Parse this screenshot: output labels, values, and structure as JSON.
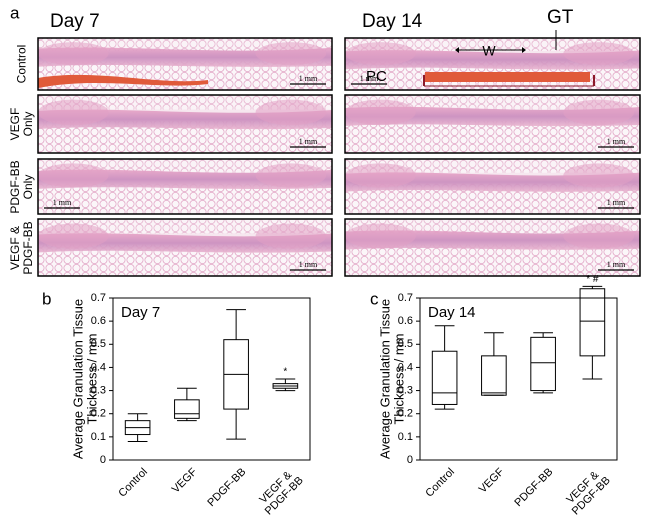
{
  "panel_a": {
    "label": "a",
    "columns": [
      "Day 7",
      "Day 14"
    ],
    "rows": [
      "Control",
      "VEGF\nOnly",
      "PDGF-BB\nOnly",
      "VEGF &\nPDGF-BB"
    ],
    "annotations": {
      "gt": "GT",
      "w": "W",
      "pc": "PC"
    },
    "scale_bar": "1 mm"
  },
  "chart_data": [
    {
      "type": "box",
      "panel_label": "b",
      "title": "Day 7",
      "y_label": "Average Granulation Tissue\nThickness / mm",
      "categories": [
        "Control",
        "VEGF",
        "PDGF-BB",
        "VEGF &\nPDGF-BB"
      ],
      "stats": [
        {
          "min": 0.08,
          "q1": 0.11,
          "median": 0.14,
          "q3": 0.17,
          "max": 0.2
        },
        {
          "min": 0.17,
          "q1": 0.18,
          "median": 0.2,
          "q3": 0.26,
          "max": 0.31
        },
        {
          "min": 0.09,
          "q1": 0.22,
          "median": 0.37,
          "q3": 0.52,
          "max": 0.65
        },
        {
          "min": 0.3,
          "q1": 0.31,
          "median": 0.32,
          "q3": 0.33,
          "max": 0.35
        }
      ],
      "annotations": [
        null,
        null,
        null,
        "*"
      ],
      "ylim": [
        0,
        0.7
      ],
      "yticks": [
        0,
        0.1,
        0.2,
        0.3,
        0.4,
        0.5,
        0.6,
        0.7
      ],
      "color": "#000000"
    },
    {
      "type": "box",
      "panel_label": "c",
      "title": "Day 14",
      "y_label": "Average Granulation Tissue\nThickness / mm",
      "categories": [
        "Control",
        "VEGF",
        "PDGF-BB",
        "VEGF &\nPDGF-BB"
      ],
      "stats": [
        {
          "min": 0.22,
          "q1": 0.24,
          "median": 0.29,
          "q3": 0.47,
          "max": 0.58
        },
        {
          "min": 0.28,
          "q1": 0.28,
          "median": 0.29,
          "q3": 0.45,
          "max": 0.55
        },
        {
          "min": 0.29,
          "q1": 0.3,
          "median": 0.42,
          "q3": 0.53,
          "max": 0.55
        },
        {
          "min": 0.35,
          "q1": 0.45,
          "median": 0.6,
          "q3": 0.74,
          "max": 0.75
        }
      ],
      "annotations": [
        null,
        null,
        null,
        "* #"
      ],
      "ylim": [
        0,
        0.7
      ],
      "yticks": [
        0,
        0.1,
        0.2,
        0.3,
        0.4,
        0.5,
        0.6,
        0.7
      ],
      "color": "#000000"
    }
  ]
}
